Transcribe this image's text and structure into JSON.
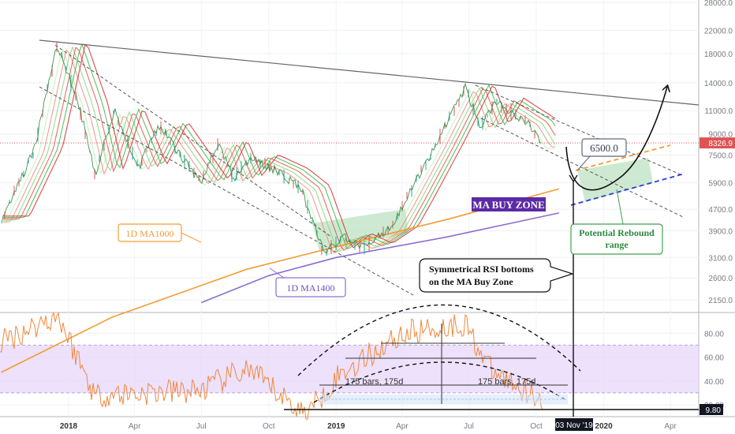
{
  "chart_data": [
    {
      "type": "line",
      "panel": "price",
      "scale": "log",
      "y_ticks": [
        "28000.0",
        "22000.0",
        "18000.0",
        "14000.0",
        "11000.0",
        "9000.0",
        "7500.0",
        "5900.0",
        "4700.0",
        "3900.0",
        "3100.0",
        "2600.0",
        "2150.0"
      ],
      "y_tick_values": [
        28000,
        22000,
        18000,
        14000,
        11000,
        9000,
        7500,
        5900,
        4700,
        3900,
        3100,
        2600,
        2150
      ],
      "x_ticks": [
        "2018",
        "Apr",
        "Jul",
        "Oct",
        "2019",
        "Apr",
        "Jul",
        "Oct",
        "2020",
        "Apr"
      ],
      "last_price_label": "8326.9",
      "last_price": 8326.9,
      "annotations": {
        "target_box": "6500.0",
        "ma_buy_zone": "MA BUY ZONE",
        "ma1000": "1D MA1000",
        "ma1400": "1D MA1400",
        "rebound_line1": "Potential Rebound",
        "rebound_line2": "range",
        "rsi_note_line1": "Symmetrical RSI bottoms",
        "rsi_note_line2": "on the MA Buy Zone"
      },
      "series": [
        {
          "name": "1D MA1000",
          "color": "#f39c32",
          "x": [
            "2017-10-01",
            "2018-03-01",
            "2018-09-01",
            "2019-01-01",
            "2019-06-01",
            "2019-11-01"
          ],
          "values": [
            1150,
            1850,
            2800,
            3400,
            4300,
            5600
          ]
        },
        {
          "name": "1D MA1400",
          "color": "#8a6fd0",
          "x": [
            "2018-07-01",
            "2018-10-01",
            "2019-01-01",
            "2019-06-01",
            "2019-11-01"
          ],
          "values": [
            2100,
            2650,
            3100,
            3700,
            4550
          ]
        },
        {
          "name": "price",
          "color": "#2b8a3e",
          "x": [
            "2017-10-01",
            "2017-11-15",
            "2017-12-17",
            "2018-01-15",
            "2018-02-06",
            "2018-03-05",
            "2018-04-06",
            "2018-05-05",
            "2018-06-29",
            "2018-07-25",
            "2018-08-14",
            "2018-09-05",
            "2018-10-15",
            "2018-11-14",
            "2018-12-15",
            "2019-01-10",
            "2019-02-08",
            "2019-03-15",
            "2019-04-05",
            "2019-05-15",
            "2019-06-26",
            "2019-07-17",
            "2019-08-06",
            "2019-09-20",
            "2019-10-08"
          ],
          "values": [
            4300,
            7800,
            19500,
            11500,
            6400,
            11000,
            6700,
            9700,
            5900,
            8300,
            6100,
            7300,
            6500,
            5600,
            3250,
            3700,
            3400,
            3950,
            5000,
            8000,
            13500,
            9500,
            11900,
            9900,
            8200
          ]
        }
      ]
    },
    {
      "type": "line",
      "panel": "rsi",
      "y_ticks": [
        "80.00",
        "60.00",
        "40.00",
        "20.00"
      ],
      "y_tick_values": [
        80,
        60,
        40,
        20
      ],
      "last_value_label": "9.80",
      "x_cursor_label": "03 Nov '19",
      "band": [
        30,
        70
      ],
      "measure_left": "175 bars, 175d",
      "measure_right": "175 bars, 175d",
      "series": [
        {
          "name": "RSI",
          "color": "#f0883e",
          "x": [
            "2017-08-01",
            "2017-12-17",
            "2018-02-06",
            "2018-06-29",
            "2018-09-01",
            "2018-11-20",
            "2019-01-05",
            "2019-04-02",
            "2019-06-26",
            "2019-08-01",
            "2019-10-10"
          ],
          "values": [
            55,
            95,
            28,
            32,
            50,
            12,
            45,
            80,
            88,
            48,
            25
          ]
        }
      ]
    }
  ]
}
